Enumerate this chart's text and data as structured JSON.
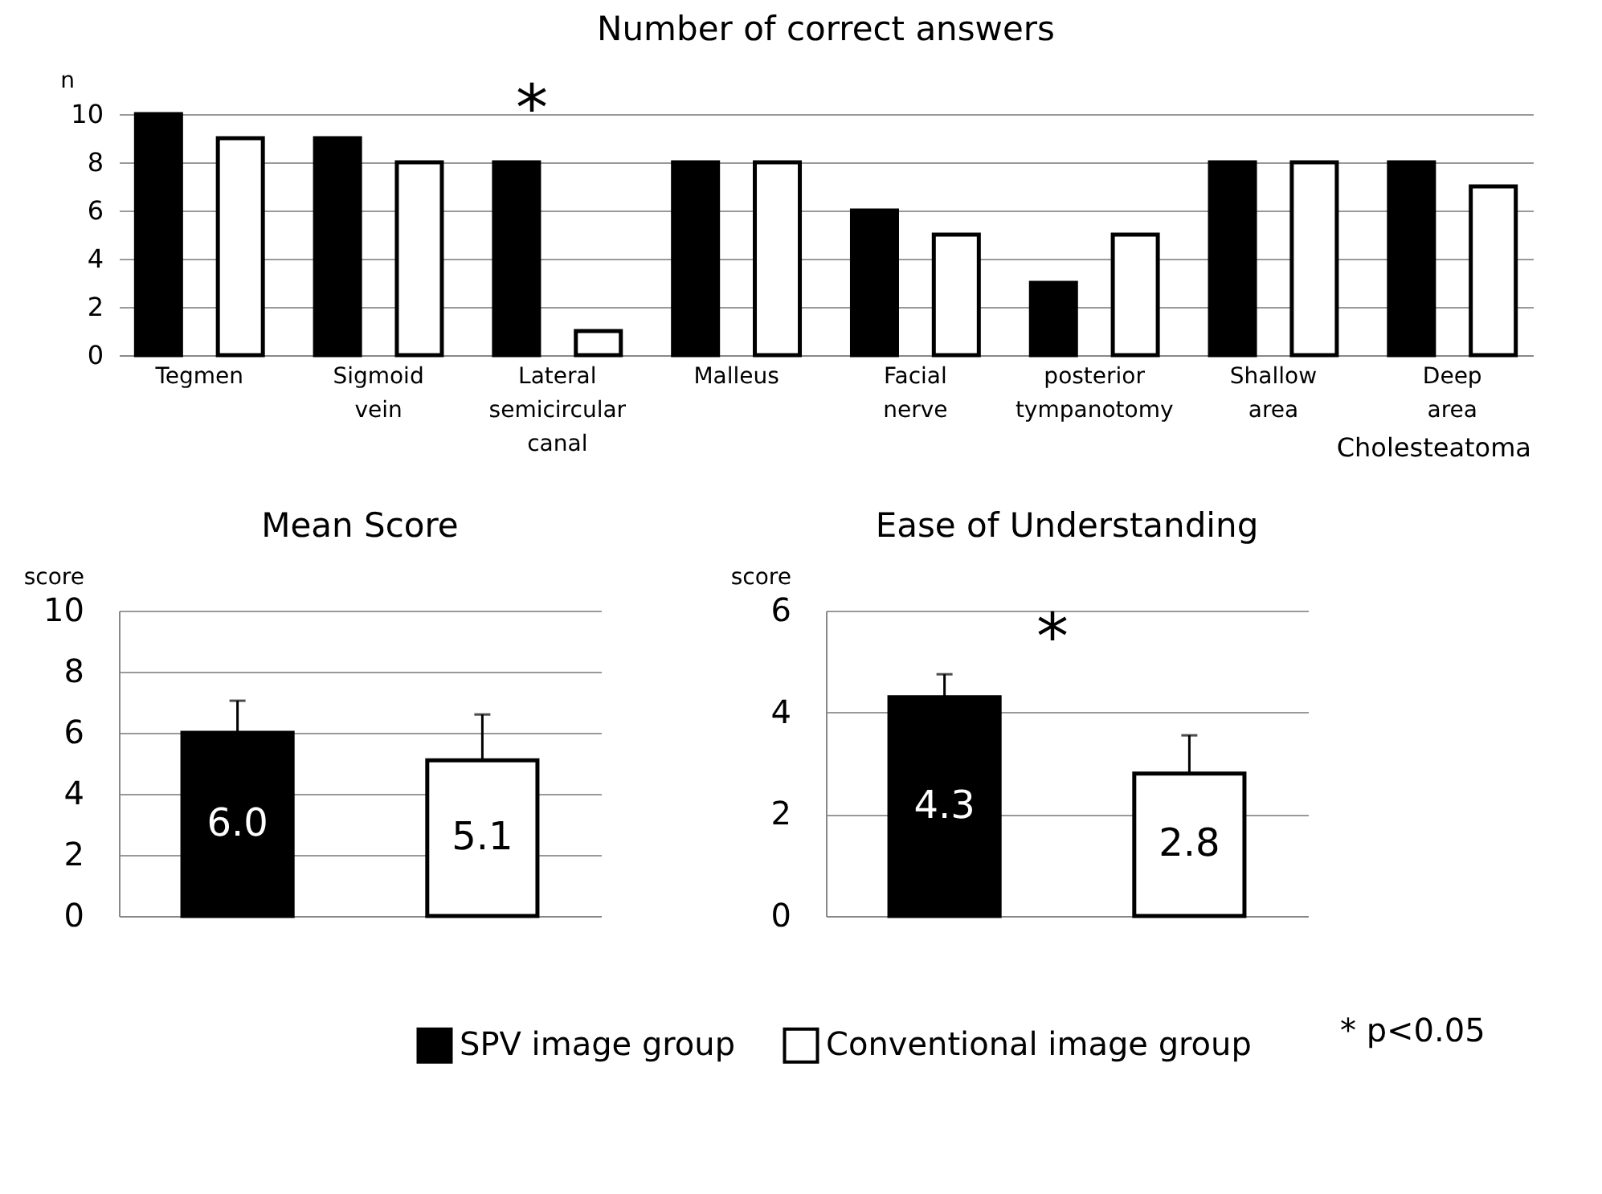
{
  "chart_data": [
    {
      "type": "bar",
      "title": "Number of correct answers",
      "ylabel": "n",
      "categories": [
        "Tegmen",
        "Sigmoid vein",
        "Lateral semicircular canal",
        "Malleus",
        "Facial nerve",
        "posterior tympanotomy",
        "Shallow area",
        "Deep area"
      ],
      "series": [
        {
          "name": "SPV image group",
          "color": "#000000",
          "values": [
            10,
            9,
            8,
            8,
            6,
            3,
            8,
            8
          ]
        },
        {
          "name": "Conventional image group",
          "color": "#ffffff",
          "values": [
            9,
            8,
            1,
            8,
            5,
            5,
            8,
            7
          ]
        }
      ],
      "ylim": [
        0,
        10
      ],
      "yticks": [
        0,
        2,
        4,
        6,
        8,
        10
      ],
      "grid": "y",
      "legend": "bottom",
      "annotations": [
        "*",
        "Cholesteatoma"
      ]
    },
    {
      "type": "bar",
      "title": "Mean Score",
      "ylabel": "score",
      "categories": [
        null
      ],
      "series": [
        {
          "name": "SPV image group",
          "color": "#000000",
          "values": [
            6.0
          ],
          "errors": [
            [
              6.0,
              7.05
            ]
          ],
          "value_labels": [
            "6.0"
          ]
        },
        {
          "name": "Conventional image group",
          "color": "#ffffff",
          "values": [
            5.1
          ],
          "errors": [
            [
              5.1,
              6.6
            ]
          ],
          "value_labels": [
            "5.1"
          ]
        }
      ],
      "ylim": [
        0,
        10
      ],
      "yticks": [
        0,
        2,
        4,
        6,
        8,
        10
      ],
      "grid": "y",
      "legend": "bottom"
    },
    {
      "type": "bar",
      "title": "Ease of Understanding",
      "ylabel": "score",
      "categories": [
        null
      ],
      "series": [
        {
          "name": "SPV image group",
          "color": "#000000",
          "values": [
            4.3
          ],
          "errors": [
            [
              4.3,
              4.75
            ]
          ],
          "value_labels": [
            "4.3"
          ]
        },
        {
          "name": "Conventional image group",
          "color": "#ffffff",
          "values": [
            2.8
          ],
          "errors": [
            [
              2.8,
              3.55
            ]
          ],
          "value_labels": [
            "2.8"
          ]
        }
      ],
      "ylim": [
        0,
        6
      ],
      "yticks": [
        0,
        2,
        4,
        6
      ],
      "grid": "y",
      "legend": "bottom",
      "annotations": [
        "*",
        "* p<0.05"
      ]
    }
  ]
}
